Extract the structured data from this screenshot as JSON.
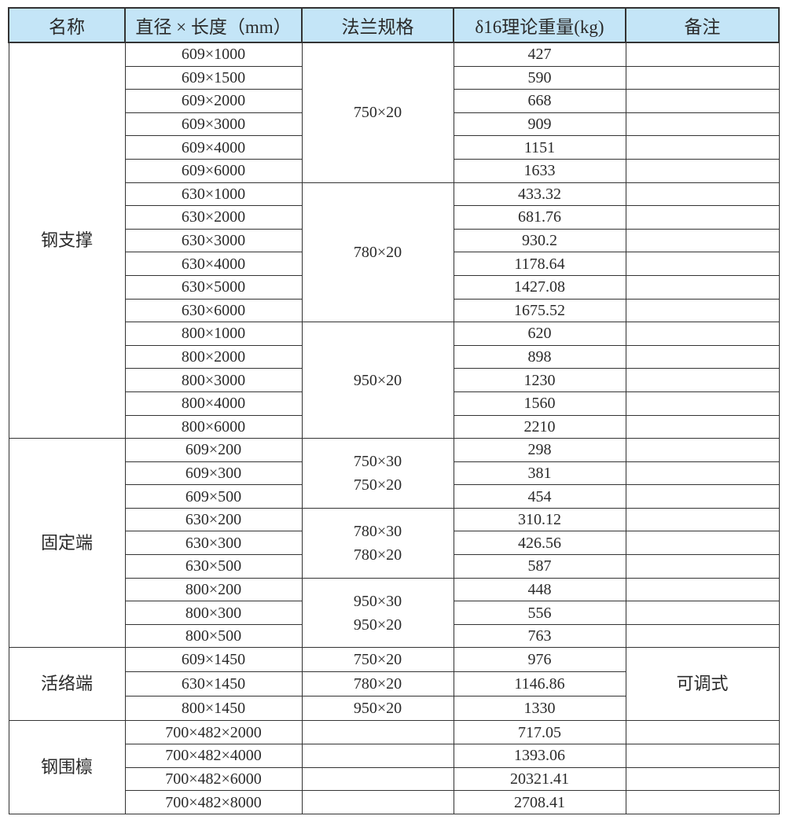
{
  "headers": [
    "名称",
    "直径 × 长度（mm）",
    "法兰规格",
    "δ16理论重量(kg)",
    "备注"
  ],
  "groups": [
    {
      "name": "钢支撑",
      "remark": null,
      "subgroups": [
        {
          "flange": [
            "750×20"
          ],
          "rows": [
            {
              "size": "609×1000",
              "weight": "427"
            },
            {
              "size": "609×1500",
              "weight": "590"
            },
            {
              "size": "609×2000",
              "weight": "668"
            },
            {
              "size": "609×3000",
              "weight": "909"
            },
            {
              "size": "609×4000",
              "weight": "1151"
            },
            {
              "size": "609×6000",
              "weight": "1633"
            }
          ]
        },
        {
          "flange": [
            "780×20"
          ],
          "rows": [
            {
              "size": "630×1000",
              "weight": "433.32"
            },
            {
              "size": "630×2000",
              "weight": "681.76"
            },
            {
              "size": "630×3000",
              "weight": "930.2"
            },
            {
              "size": "630×4000",
              "weight": "1178.64"
            },
            {
              "size": "630×5000",
              "weight": "1427.08"
            },
            {
              "size": "630×6000",
              "weight": "1675.52"
            }
          ]
        },
        {
          "flange": [
            "950×20"
          ],
          "rows": [
            {
              "size": "800×1000",
              "weight": "620"
            },
            {
              "size": "800×2000",
              "weight": "898"
            },
            {
              "size": "800×3000",
              "weight": "1230"
            },
            {
              "size": "800×4000",
              "weight": "1560"
            },
            {
              "size": "800×6000",
              "weight": "2210"
            }
          ]
        }
      ]
    },
    {
      "name": "固定端",
      "remark": null,
      "subgroups": [
        {
          "flange": [
            "750×30",
            "750×20"
          ],
          "rows": [
            {
              "size": "609×200",
              "weight": "298"
            },
            {
              "size": "609×300",
              "weight": "381"
            },
            {
              "size": "609×500",
              "weight": "454"
            }
          ]
        },
        {
          "flange": [
            "780×30",
            "780×20"
          ],
          "rows": [
            {
              "size": "630×200",
              "weight": "310.12"
            },
            {
              "size": "630×300",
              "weight": "426.56"
            },
            {
              "size": "630×500",
              "weight": "587"
            }
          ]
        },
        {
          "flange": [
            "950×30",
            "950×20"
          ],
          "rows": [
            {
              "size": "800×200",
              "weight": "448"
            },
            {
              "size": "800×300",
              "weight": "556"
            },
            {
              "size": "800×500",
              "weight": "763"
            }
          ]
        }
      ]
    },
    {
      "name": "活络端",
      "remark": "可调式",
      "subgroups": [
        {
          "flange": [
            "750×20"
          ],
          "rows": [
            {
              "size": "609×1450",
              "weight": "976"
            }
          ]
        },
        {
          "flange": [
            "780×20"
          ],
          "rows": [
            {
              "size": "630×1450",
              "weight": "1146.86"
            }
          ]
        },
        {
          "flange": [
            "950×20"
          ],
          "rows": [
            {
              "size": "800×1450",
              "weight": "1330"
            }
          ]
        }
      ]
    },
    {
      "name": "钢围檩",
      "remark": null,
      "subgroups": [
        {
          "flange": [],
          "rows": [
            {
              "size": "700×482×2000",
              "weight": "717.05"
            }
          ]
        },
        {
          "flange": [],
          "rows": [
            {
              "size": "700×482×4000",
              "weight": "1393.06"
            }
          ]
        },
        {
          "flange": [],
          "rows": [
            {
              "size": "700×482×6000",
              "weight": "20321.41"
            }
          ]
        },
        {
          "flange": [],
          "rows": [
            {
              "size": "700×482×8000",
              "weight": "2708.41"
            }
          ]
        }
      ]
    }
  ]
}
